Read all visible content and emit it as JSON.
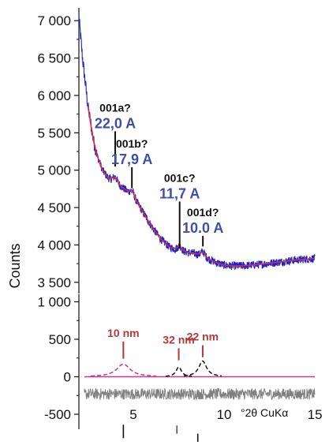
{
  "chart_data": [
    {
      "type": "line",
      "panel": "top",
      "ylabel": "Counts",
      "xlim": [
        2.0,
        15.3
      ],
      "ylim": [
        3350,
        7150
      ],
      "yticks": [
        3500,
        4000,
        4500,
        5000,
        5500,
        6000,
        6500,
        7000
      ],
      "ytick_labels": [
        "3 500",
        "4 000",
        "4 500",
        "5 000",
        "5 500",
        "6 000",
        "6 500",
        "7 000"
      ],
      "colors": {
        "observed": "#1a22cc",
        "fit": "#d62a4a",
        "marker": "#111111",
        "d_label": "#3d4fa8"
      },
      "series": [
        {
          "role": "observed",
          "x": [
            2.0,
            2.2,
            2.5,
            2.8,
            3.0,
            3.3,
            3.6,
            4.0,
            4.5,
            5.0,
            5.5,
            6.0,
            6.5,
            7.0,
            7.5,
            8.0,
            8.5,
            9.0,
            9.5,
            10.0,
            10.5,
            11.0,
            12.0,
            13.0,
            14.0,
            15.0
          ],
          "y": [
            7050,
            6500,
            5850,
            5400,
            5200,
            5000,
            4900,
            4850,
            4750,
            4650,
            4450,
            4250,
            4080,
            3970,
            3930,
            3900,
            3880,
            3830,
            3770,
            3730,
            3720,
            3720,
            3740,
            3770,
            3800,
            3820
          ]
        },
        {
          "role": "fit",
          "x": [
            2.5,
            2.8,
            3.0,
            3.3,
            3.6,
            4.0,
            4.5,
            5.0,
            5.5,
            6.0,
            6.5,
            7.0,
            7.5,
            8.0,
            8.5,
            9.0,
            9.5,
            10.0,
            10.5,
            11.0,
            12.0,
            13.0,
            14.0,
            15.0
          ],
          "y": [
            5850,
            5400,
            5200,
            5000,
            4900,
            4850,
            4750,
            4650,
            4450,
            4250,
            4080,
            3970,
            3930,
            3900,
            3880,
            3830,
            3770,
            3730,
            3720,
            3720,
            3740,
            3770,
            3800,
            3820
          ]
        }
      ],
      "peaks": [
        {
          "name": "001a?",
          "d": "22,0 A",
          "x": 4.0,
          "marker_bottom": 5050,
          "marker_top": 5520
        },
        {
          "name": "001b?",
          "d": "17,9 A",
          "x": 4.92,
          "marker_bottom": 4760,
          "marker_top": 5040
        },
        {
          "name": "001c?",
          "d": "11,7 A",
          "x": 7.55,
          "marker_bottom": 3950,
          "marker_top": 4580
        },
        {
          "name": "001d?",
          "d": "10.0 A",
          "x": 8.83,
          "marker_bottom": 3980,
          "marker_top": 4120
        }
      ]
    },
    {
      "type": "line",
      "panel": "bottom",
      "xlabel": "°2θ CuKα",
      "xlim": [
        2.0,
        15.3
      ],
      "ylim": [
        -700,
        1100
      ],
      "xticks": [
        5,
        10,
        15
      ],
      "yticks": [
        -500,
        0,
        500,
        1000
      ],
      "ytick_labels": [
        "-500",
        "0",
        "500",
        "1 000"
      ],
      "colors": {
        "size_label": "#b03a3a",
        "residual": "#808080",
        "peak_a": "#cc3399",
        "peak_bc": "#111111",
        "baseline": "#cc3399"
      },
      "size_peaks": [
        {
          "label": "10 nm",
          "x": 4.45,
          "height": 170,
          "width": 0.45,
          "color": "#cc3399",
          "marker_bottom": 240,
          "marker_top": 470
        },
        {
          "label": "32 nm",
          "x": 7.5,
          "height": 130,
          "width": 0.18,
          "color": "#111111",
          "marker_bottom": 220,
          "marker_top": 380
        },
        {
          "label": "22 nm",
          "x": 8.82,
          "height": 210,
          "width": 0.26,
          "color": "#111111",
          "marker_bottom": 260,
          "marker_top": 420
        }
      ],
      "residual_level": -230,
      "residual_amplitude": 75,
      "bottom_sticks": [
        {
          "x": 4.45,
          "top": -640,
          "bottom": -820,
          "color": "#111111"
        },
        {
          "x": 7.4,
          "top": -650,
          "bottom": -760,
          "color": "#3d4fa8"
        },
        {
          "x": 8.55,
          "top": -760,
          "bottom": -980,
          "color": "#111111"
        }
      ]
    }
  ]
}
